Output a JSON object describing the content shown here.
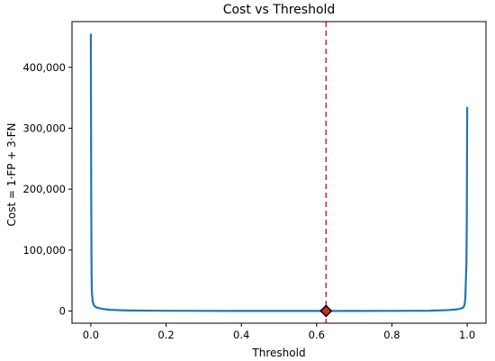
{
  "chart_data": {
    "type": "line",
    "title": "Cost vs Threshold",
    "xlabel": "Threshold",
    "ylabel": "Cost = 1·FP + 3·FN",
    "xlim": [
      -0.05,
      1.05
    ],
    "ylim": [
      -20000,
      475000
    ],
    "xticks": [
      0.0,
      0.2,
      0.4,
      0.6,
      0.8,
      1.0
    ],
    "xtick_labels": [
      "0.0",
      "0.2",
      "0.4",
      "0.6",
      "0.8",
      "1.0"
    ],
    "yticks": [
      0,
      100000,
      200000,
      300000,
      400000
    ],
    "ytick_labels": [
      "0",
      "100,000",
      "200,000",
      "300,000",
      "400,000"
    ],
    "grid": false,
    "colors": {
      "line": "#1f77b4",
      "threshold_line": "#d62728",
      "marker_fill": "#d62728",
      "marker_edge": "#000000"
    },
    "series": [
      {
        "x": [
          0.0,
          0.001,
          0.002,
          0.003,
          0.005,
          0.008,
          0.01,
          0.015,
          0.02,
          0.03,
          0.05,
          0.08,
          0.1,
          0.15,
          0.2,
          0.3,
          0.4,
          0.5,
          0.6,
          0.625,
          0.7,
          0.8,
          0.9,
          0.95,
          0.97,
          0.98,
          0.985,
          0.99,
          0.993,
          0.995,
          0.997,
          0.998,
          0.999,
          1.0
        ],
        "y": [
          455000,
          200000,
          60000,
          30000,
          15000,
          10000,
          8000,
          6000,
          5000,
          3500,
          2000,
          1200,
          900,
          600,
          400,
          250,
          150,
          100,
          80,
          70,
          100,
          200,
          500,
          1500,
          2500,
          3500,
          4500,
          6000,
          10000,
          20000,
          60000,
          80000,
          150000,
          335000
        ]
      }
    ],
    "optimal_threshold": 0.625,
    "optimal_cost": 70
  }
}
